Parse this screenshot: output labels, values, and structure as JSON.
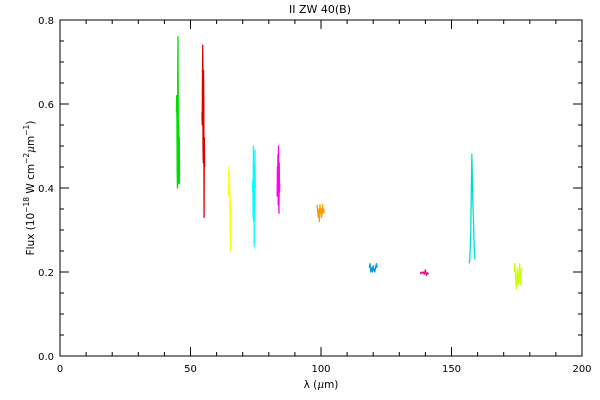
{
  "chart_data": {
    "type": "line",
    "title": "II ZW 40(B)",
    "xlabel_prefix": "λ (",
    "xlabel_unit_mu": "μ",
    "xlabel_unit_rest": "m)",
    "ylabel_parts": {
      "pre": "Flux (10",
      "exp1": "−18",
      "mid": " W cm",
      "exp2": "−2",
      "mu": "μ",
      "m": "m",
      "exp3": "−1",
      "post": ")"
    },
    "xlim": [
      0,
      200
    ],
    "ylim": [
      0.0,
      0.8
    ],
    "xticks": [
      0,
      50,
      100,
      150,
      200
    ],
    "xtick_labels": [
      "0",
      "50",
      "100",
      "150",
      "200"
    ],
    "yticks": [
      0.0,
      0.2,
      0.4,
      0.6,
      0.8
    ],
    "ytick_labels": [
      "0.0",
      "0.2",
      "0.4",
      "0.6",
      "0.8"
    ],
    "grid": false,
    "series": [
      {
        "color": "#00dd00",
        "x": [
          44.6,
          44.7,
          44.8,
          44.9,
          45.0,
          45.1,
          45.2,
          45.3,
          45.4,
          45.5,
          45.6,
          45.7,
          45.8
        ],
        "y": [
          0.58,
          0.62,
          0.57,
          0.44,
          0.4,
          0.66,
          0.76,
          0.6,
          0.41,
          0.55,
          0.42,
          0.52,
          0.41
        ]
      },
      {
        "color": "#dd0000",
        "x": [
          54.4,
          54.5,
          54.6,
          54.7,
          54.8,
          54.9,
          55.0,
          55.1,
          55.2,
          55.3,
          55.4
        ],
        "y": [
          0.58,
          0.55,
          0.68,
          0.74,
          0.5,
          0.46,
          0.68,
          0.6,
          0.33,
          0.52,
          0.45
        ]
      },
      {
        "color": "#ffff00",
        "x": [
          64.5,
          64.6,
          64.7,
          64.8,
          64.9,
          65.0,
          65.1,
          65.2,
          65.3,
          65.4,
          65.5
        ],
        "y": [
          0.41,
          0.38,
          0.45,
          0.4,
          0.44,
          0.39,
          0.36,
          0.3,
          0.25,
          0.37,
          0.34
        ]
      },
      {
        "color": "#00ffff",
        "x": [
          73.8,
          73.9,
          74.0,
          74.1,
          74.2,
          74.3,
          74.4,
          74.5,
          74.6,
          74.7,
          74.8
        ],
        "y": [
          0.39,
          0.42,
          0.33,
          0.5,
          0.32,
          0.45,
          0.26,
          0.43,
          0.36,
          0.49,
          0.4
        ]
      },
      {
        "color": "#ff00ff",
        "x": [
          83.2,
          83.3,
          83.4,
          83.5,
          83.6,
          83.7,
          83.8,
          83.9,
          84.0,
          84.1,
          84.2
        ],
        "y": [
          0.38,
          0.45,
          0.4,
          0.48,
          0.36,
          0.5,
          0.42,
          0.34,
          0.46,
          0.39,
          0.41
        ]
      },
      {
        "color": "#ff9900",
        "x": [
          98.5,
          98.8,
          99.0,
          99.2,
          99.4,
          99.6,
          99.8,
          100.0,
          100.2,
          100.4,
          100.6,
          100.8,
          101.0,
          101.2
        ],
        "y": [
          0.36,
          0.34,
          0.33,
          0.35,
          0.32,
          0.36,
          0.34,
          0.35,
          0.33,
          0.34,
          0.36,
          0.34,
          0.35,
          0.34
        ]
      },
      {
        "color": "#0099dd",
        "x": [
          118.5,
          118.8,
          119.1,
          119.4,
          119.7,
          120.0,
          120.3,
          120.6,
          120.9,
          121.2,
          121.5
        ],
        "y": [
          0.21,
          0.22,
          0.2,
          0.21,
          0.2,
          0.215,
          0.205,
          0.2,
          0.21,
          0.22,
          0.21
        ]
      },
      {
        "color": "#ee0077",
        "x": [
          138.0,
          138.4,
          138.8,
          139.2,
          139.6,
          140.0,
          140.4,
          140.8,
          141.2
        ],
        "y": [
          0.195,
          0.2,
          0.197,
          0.2,
          0.195,
          0.205,
          0.192,
          0.198,
          0.195
        ]
      },
      {
        "color": "#00ddcc",
        "x": [
          156.8,
          157.0,
          157.2,
          157.4,
          157.6,
          157.8,
          158.0,
          158.2,
          158.4,
          158.6,
          158.8,
          159.0
        ],
        "y": [
          0.22,
          0.23,
          0.26,
          0.3,
          0.4,
          0.48,
          0.42,
          0.36,
          0.33,
          0.28,
          0.24,
          0.23
        ]
      },
      {
        "color": "#ccff00",
        "x": [
          174.0,
          174.3,
          174.6,
          174.9,
          175.2,
          175.5,
          175.8,
          176.1,
          176.4,
          176.7,
          177.0
        ],
        "y": [
          0.2,
          0.22,
          0.18,
          0.16,
          0.21,
          0.17,
          0.19,
          0.22,
          0.17,
          0.2,
          0.21
        ]
      }
    ]
  }
}
